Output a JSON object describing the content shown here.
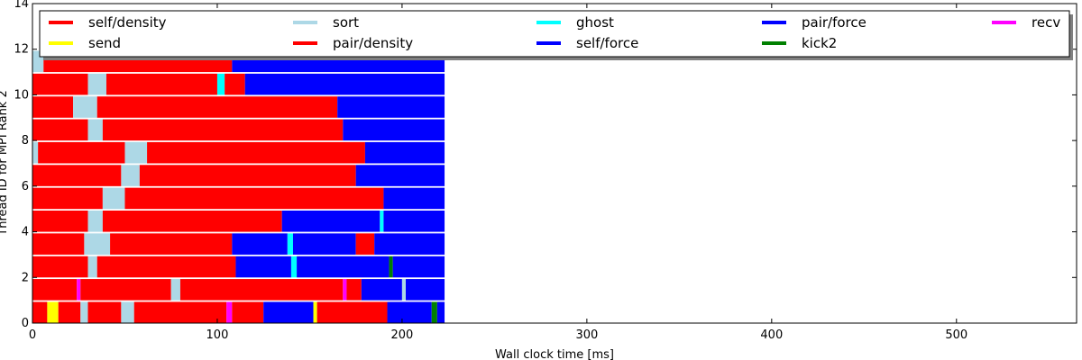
{
  "chart_data": {
    "type": "bar",
    "subtype": "task-timeline",
    "title": "",
    "xlabel": "Wall clock time [ms]",
    "ylabel": "Thread ID for MPI Rank 2",
    "xlim": [
      0,
      565
    ],
    "ylim": [
      0,
      14
    ],
    "xticks": [
      0,
      100,
      200,
      300,
      400,
      500
    ],
    "yticks": [
      0,
      2,
      4,
      6,
      8,
      10,
      12,
      14
    ],
    "xtick_labels": [
      "0",
      "100",
      "200",
      "300",
      "400",
      "500"
    ],
    "ytick_labels": [
      "0",
      "2",
      "4",
      "6",
      "8",
      "10",
      "12",
      "14"
    ],
    "grid": false,
    "legend": {
      "placement": "top",
      "columns": 5,
      "entries": [
        {
          "key": "self_density",
          "label": "self/density",
          "color": "#ff0000"
        },
        {
          "key": "send",
          "label": "send",
          "color": "#ffff00"
        },
        {
          "key": "sort",
          "label": "sort",
          "color": "#add8e6"
        },
        {
          "key": "pair_density",
          "label": "pair/density",
          "color": "#ff0000"
        },
        {
          "key": "ghost",
          "label": "ghost",
          "color": "#00ffff"
        },
        {
          "key": "self_force",
          "label": "self/force",
          "color": "#0000ff"
        },
        {
          "key": "pair_force",
          "label": "pair/force",
          "color": "#0000ff"
        },
        {
          "key": "kick2",
          "label": "kick2",
          "color": "#008000"
        },
        {
          "key": "recv",
          "label": "recv",
          "color": "#ff00ff"
        }
      ]
    },
    "threads": [
      {
        "id": 0,
        "segments": [
          {
            "task": "self_density",
            "start": 0,
            "end": 8
          },
          {
            "task": "send",
            "start": 8,
            "end": 14
          },
          {
            "task": "self_density",
            "start": 14,
            "end": 26
          },
          {
            "task": "sort",
            "start": 26,
            "end": 30
          },
          {
            "task": "pair_density",
            "start": 30,
            "end": 48
          },
          {
            "task": "sort",
            "start": 48,
            "end": 55
          },
          {
            "task": "pair_density",
            "start": 55,
            "end": 105
          },
          {
            "task": "recv",
            "start": 105,
            "end": 108
          },
          {
            "task": "pair_density",
            "start": 108,
            "end": 125
          },
          {
            "task": "pair_force",
            "start": 125,
            "end": 152
          },
          {
            "task": "send",
            "start": 152,
            "end": 154
          },
          {
            "task": "pair_density",
            "start": 154,
            "end": 192
          },
          {
            "task": "pair_force",
            "start": 192,
            "end": 216
          },
          {
            "task": "kick2",
            "start": 216,
            "end": 219
          },
          {
            "task": "pair_force",
            "start": 219,
            "end": 223
          }
        ]
      },
      {
        "id": 1,
        "segments": [
          {
            "task": "pair_density",
            "start": 0,
            "end": 24
          },
          {
            "task": "recv",
            "start": 24,
            "end": 26
          },
          {
            "task": "pair_density",
            "start": 26,
            "end": 75
          },
          {
            "task": "sort",
            "start": 75,
            "end": 80
          },
          {
            "task": "pair_density",
            "start": 80,
            "end": 168
          },
          {
            "task": "recv",
            "start": 168,
            "end": 170
          },
          {
            "task": "pair_density",
            "start": 170,
            "end": 178
          },
          {
            "task": "pair_force",
            "start": 178,
            "end": 200
          },
          {
            "task": "sort",
            "start": 200,
            "end": 202
          },
          {
            "task": "pair_force",
            "start": 202,
            "end": 223
          }
        ]
      },
      {
        "id": 2,
        "segments": [
          {
            "task": "pair_density",
            "start": 0,
            "end": 30
          },
          {
            "task": "sort",
            "start": 30,
            "end": 35
          },
          {
            "task": "pair_density",
            "start": 35,
            "end": 110
          },
          {
            "task": "pair_force",
            "start": 110,
            "end": 140
          },
          {
            "task": "ghost",
            "start": 140,
            "end": 143
          },
          {
            "task": "pair_force",
            "start": 143,
            "end": 193
          },
          {
            "task": "kick2",
            "start": 193,
            "end": 195
          },
          {
            "task": "pair_force",
            "start": 195,
            "end": 223
          }
        ]
      },
      {
        "id": 3,
        "segments": [
          {
            "task": "pair_density",
            "start": 0,
            "end": 28
          },
          {
            "task": "sort",
            "start": 28,
            "end": 42
          },
          {
            "task": "pair_density",
            "start": 42,
            "end": 108
          },
          {
            "task": "pair_force",
            "start": 108,
            "end": 138
          },
          {
            "task": "ghost",
            "start": 138,
            "end": 141
          },
          {
            "task": "pair_force",
            "start": 141,
            "end": 175
          },
          {
            "task": "pair_density",
            "start": 175,
            "end": 185
          },
          {
            "task": "pair_force",
            "start": 185,
            "end": 223
          }
        ]
      },
      {
        "id": 4,
        "segments": [
          {
            "task": "pair_density",
            "start": 0,
            "end": 30
          },
          {
            "task": "sort",
            "start": 30,
            "end": 38
          },
          {
            "task": "pair_density",
            "start": 38,
            "end": 135
          },
          {
            "task": "pair_force",
            "start": 135,
            "end": 188
          },
          {
            "task": "ghost",
            "start": 188,
            "end": 190
          },
          {
            "task": "pair_force",
            "start": 190,
            "end": 223
          }
        ]
      },
      {
        "id": 5,
        "segments": [
          {
            "task": "pair_density",
            "start": 0,
            "end": 38
          },
          {
            "task": "sort",
            "start": 38,
            "end": 50
          },
          {
            "task": "pair_density",
            "start": 50,
            "end": 190
          },
          {
            "task": "pair_force",
            "start": 190,
            "end": 223
          }
        ]
      },
      {
        "id": 6,
        "segments": [
          {
            "task": "pair_density",
            "start": 0,
            "end": 48
          },
          {
            "task": "sort",
            "start": 48,
            "end": 58
          },
          {
            "task": "pair_density",
            "start": 58,
            "end": 175
          },
          {
            "task": "pair_force",
            "start": 175,
            "end": 223
          }
        ]
      },
      {
        "id": 7,
        "segments": [
          {
            "task": "sort",
            "start": 0,
            "end": 3
          },
          {
            "task": "pair_density",
            "start": 3,
            "end": 50
          },
          {
            "task": "sort",
            "start": 50,
            "end": 62
          },
          {
            "task": "pair_density",
            "start": 62,
            "end": 180
          },
          {
            "task": "pair_force",
            "start": 180,
            "end": 223
          }
        ]
      },
      {
        "id": 8,
        "segments": [
          {
            "task": "pair_density",
            "start": 0,
            "end": 30
          },
          {
            "task": "sort",
            "start": 30,
            "end": 38
          },
          {
            "task": "pair_density",
            "start": 38,
            "end": 168
          },
          {
            "task": "pair_force",
            "start": 168,
            "end": 223
          }
        ]
      },
      {
        "id": 9,
        "segments": [
          {
            "task": "pair_density",
            "start": 0,
            "end": 22
          },
          {
            "task": "sort",
            "start": 22,
            "end": 35
          },
          {
            "task": "pair_density",
            "start": 35,
            "end": 165
          },
          {
            "task": "pair_force",
            "start": 165,
            "end": 223
          }
        ]
      },
      {
        "id": 10,
        "segments": [
          {
            "task": "pair_density",
            "start": 0,
            "end": 30
          },
          {
            "task": "sort",
            "start": 30,
            "end": 40
          },
          {
            "task": "pair_density",
            "start": 40,
            "end": 100
          },
          {
            "task": "ghost",
            "start": 100,
            "end": 104
          },
          {
            "task": "pair_density",
            "start": 104,
            "end": 115
          },
          {
            "task": "pair_force",
            "start": 115,
            "end": 223
          }
        ]
      },
      {
        "id": 11,
        "segments": [
          {
            "task": "sort",
            "start": 0,
            "end": 6
          },
          {
            "task": "pair_density",
            "start": 6,
            "end": 108
          },
          {
            "task": "pair_force",
            "start": 108,
            "end": 223
          }
        ]
      }
    ]
  }
}
